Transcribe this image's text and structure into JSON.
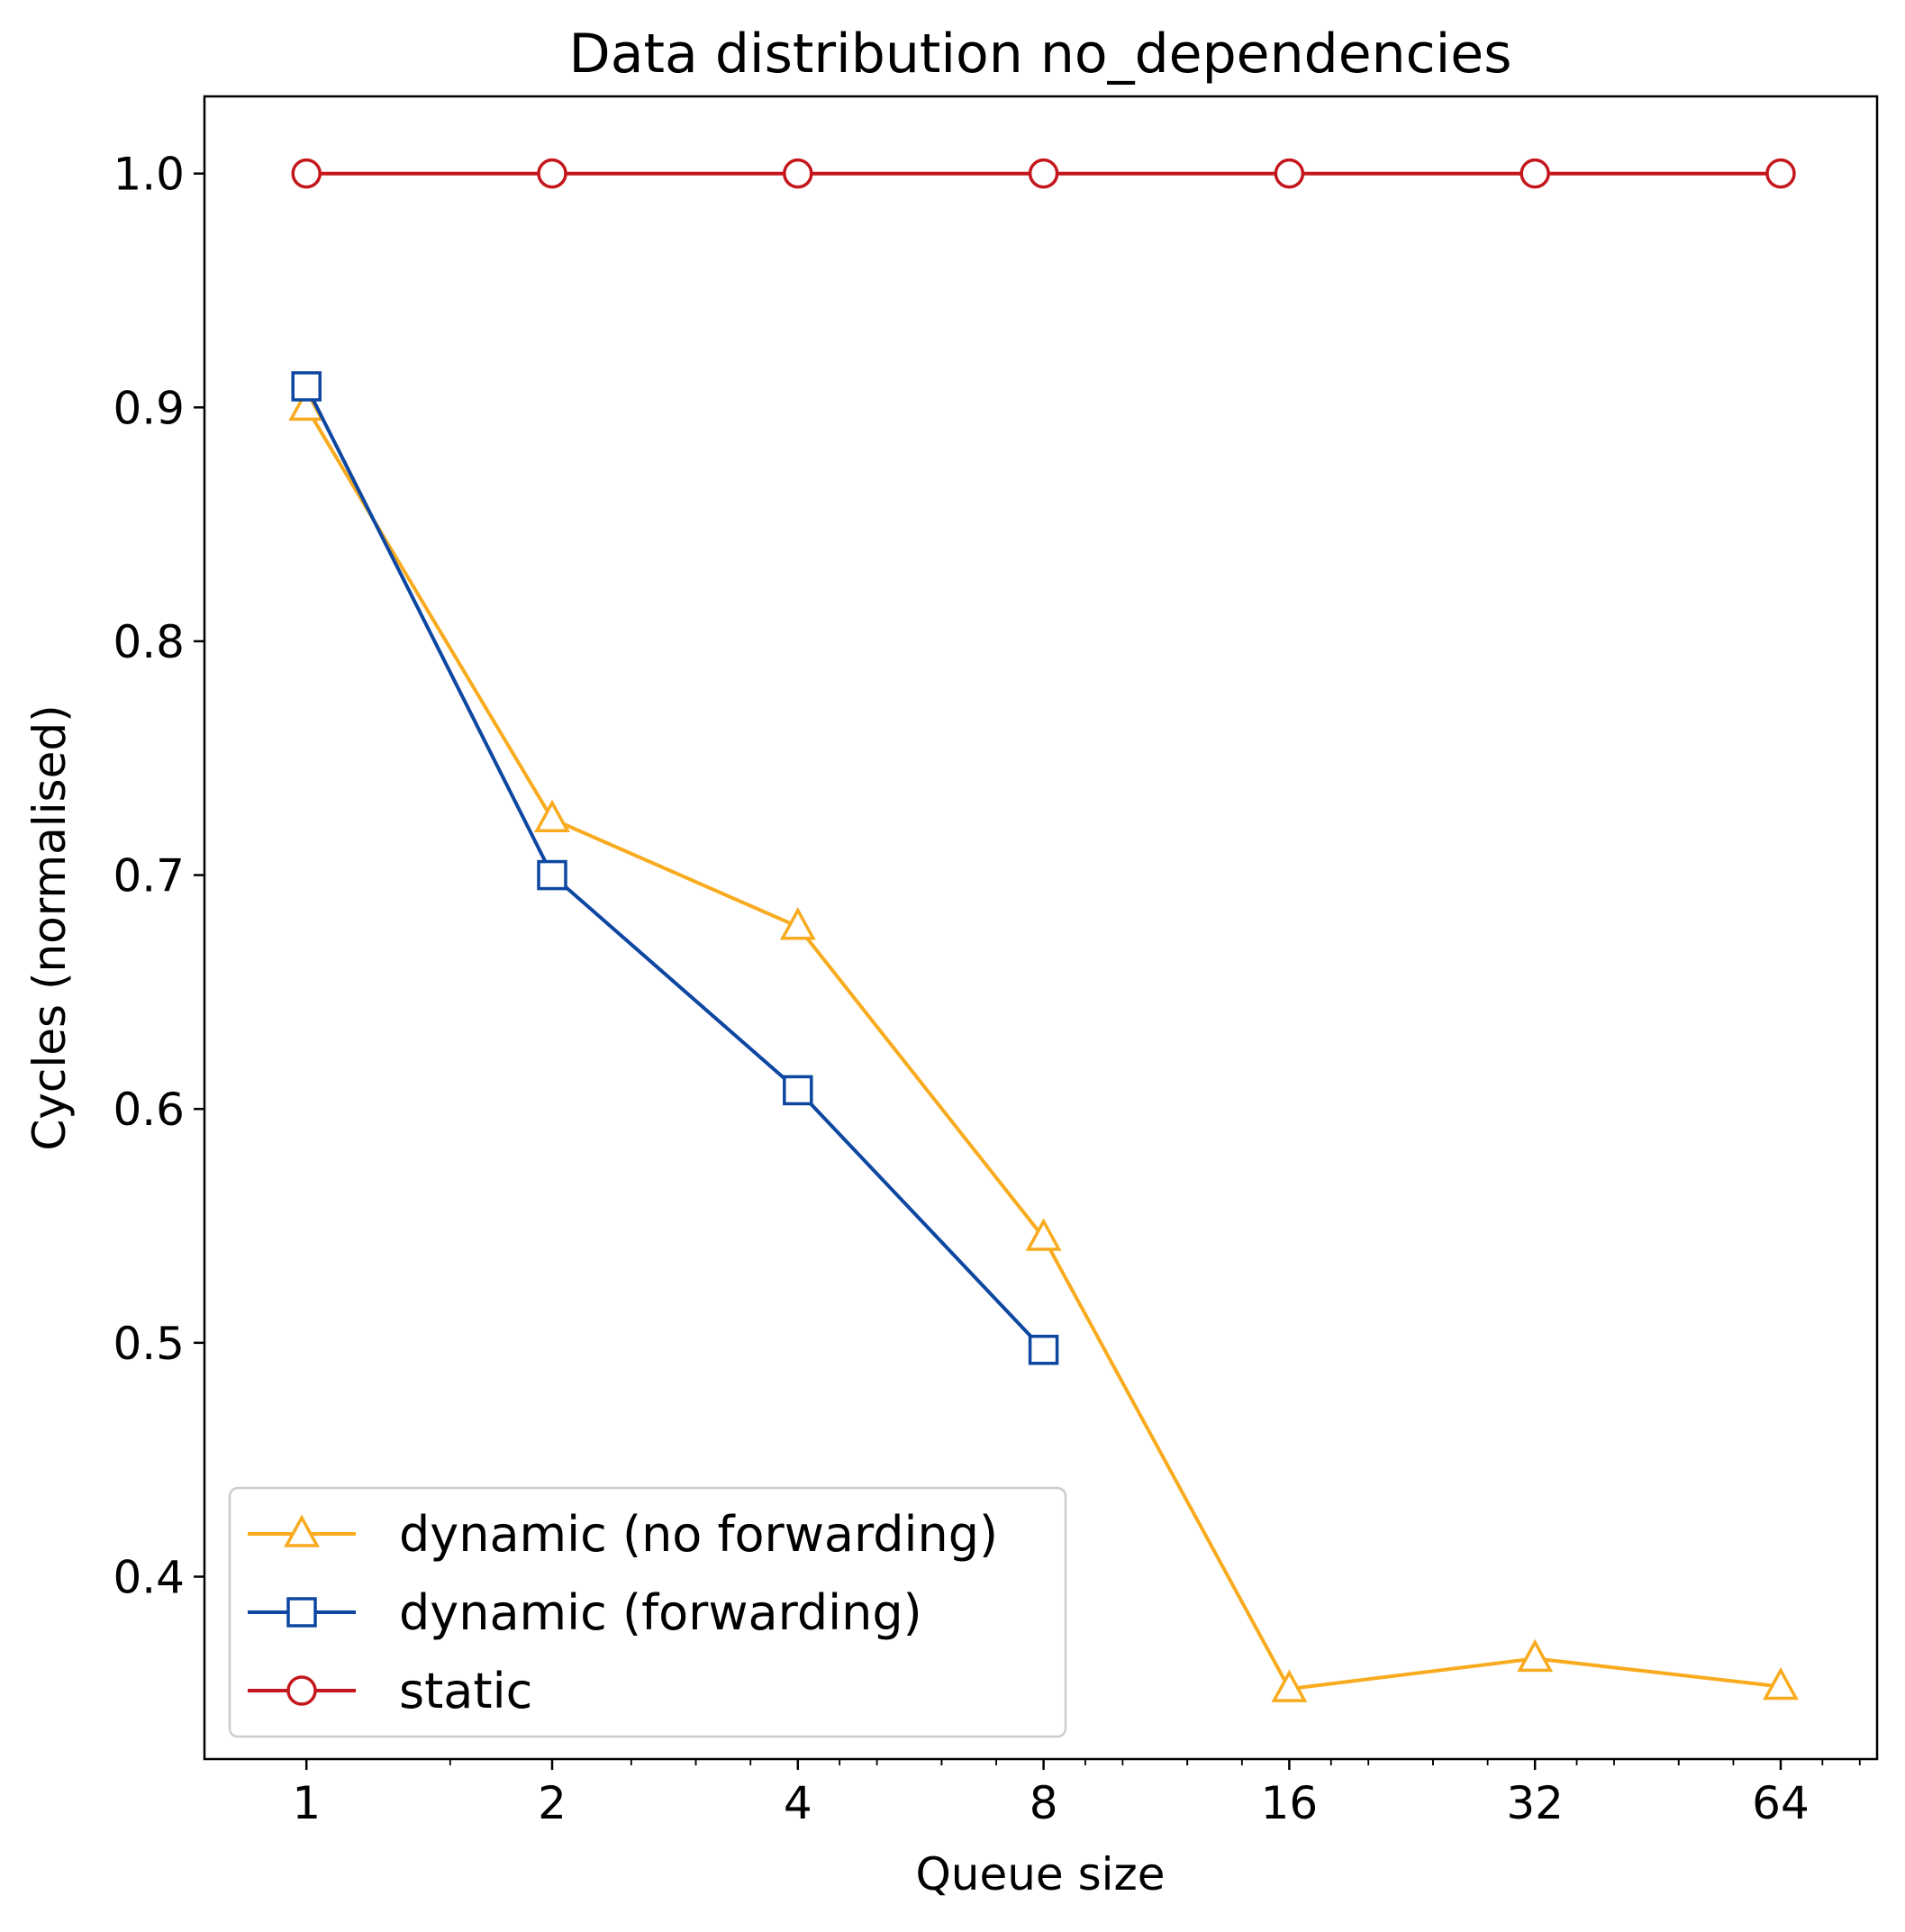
{
  "chart_data": {
    "type": "line",
    "title": "Data distribution no_dependencies",
    "xlabel": "Queue size",
    "ylabel": "Cycles (normalised)",
    "x_scale": "log2",
    "x": [
      1,
      2,
      4,
      8,
      16,
      32,
      64
    ],
    "x_tick_labels": [
      "1",
      "2",
      "4",
      "8",
      "16",
      "32",
      "64"
    ],
    "xlim": [
      0.75,
      84
    ],
    "ylim": [
      0.322,
      1.033
    ],
    "y_ticks": [
      0.4,
      0.5,
      0.6,
      0.7,
      0.8,
      0.9,
      1.0
    ],
    "y_tick_labels": [
      "0.4",
      "0.5",
      "0.6",
      "0.7",
      "0.8",
      "0.9",
      "1.0"
    ],
    "grid": false,
    "legend_position": "lower-left",
    "series": [
      {
        "name": "dynamic (no forwarding)",
        "color": "#f8ab1e",
        "marker": "triangle",
        "x": [
          1,
          2,
          4,
          8,
          16,
          32,
          64
        ],
        "values": [
          0.9,
          0.724,
          0.678,
          0.545,
          0.352,
          0.365,
          0.353
        ]
      },
      {
        "name": "dynamic (forwarding)",
        "color": "#0d47a1",
        "marker": "square",
        "x": [
          1,
          2,
          4,
          8
        ],
        "values": [
          0.909,
          0.7,
          0.608,
          0.497
        ]
      },
      {
        "name": "static",
        "color": "#c4161c",
        "marker": "circle",
        "x": [
          1,
          2,
          4,
          8,
          16,
          32,
          64
        ],
        "values": [
          1.0,
          1.0,
          1.0,
          1.0,
          1.0,
          1.0,
          1.0
        ]
      }
    ]
  }
}
